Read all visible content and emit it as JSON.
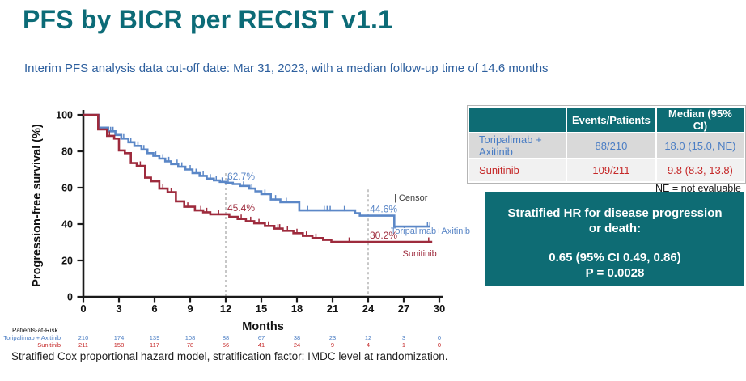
{
  "slide": {
    "title": "PFS by BICR per RECIST v1.1",
    "subtitle": "Interim PFS analysis data cut-off date: Mar 31, 2023, with a median follow-up time of 14.6 months",
    "footnote": "Stratified Cox proportional hazard model, stratification factor: IMDC level at randomization."
  },
  "colors": {
    "title_teal": "#0c6b77",
    "panel_teal": "#0e6c74",
    "subtitle_blue": "#2d5f9e",
    "table_blue": "#4a7dc4",
    "table_red": "#c52828",
    "curve_blue": "#5b87c7",
    "curve_red": "#9e2b3d"
  },
  "summary_table": {
    "headers": [
      "",
      "Events/Patients",
      "Median (95% CI)"
    ],
    "rows": [
      {
        "label": "Toripalimab + Axitinib",
        "events_patients": "88/210",
        "median": "18.0 (15.0, NE)"
      },
      {
        "label": "Sunitinib",
        "events_patients": "109/211",
        "median": "9.8 (8.3, 13.8)"
      }
    ],
    "footnote": "NE = not evaluable"
  },
  "hr_box": {
    "title": "Stratified HR for disease progression or death:",
    "value": "0.65 (95% CI 0.49, 0.86)",
    "p_value": "P = 0.0028"
  },
  "chart_data": {
    "type": "line",
    "subtype": "kaplan-meier-step",
    "title": "",
    "xlabel": "Months",
    "ylabel": "Progression-free survival (%)",
    "xlim": [
      0,
      30
    ],
    "ylim": [
      0,
      100
    ],
    "x_ticks": [
      0,
      3,
      6,
      9,
      12,
      15,
      18,
      21,
      24,
      27,
      30
    ],
    "y_ticks": [
      0,
      20,
      40,
      60,
      80,
      100
    ],
    "grid": false,
    "legend": {
      "censor_label": "| Censor"
    },
    "milestone_lines": [
      {
        "t": 12,
        "s_top": 68
      },
      {
        "t": 24,
        "s_top": 59
      }
    ],
    "series": [
      {
        "name": "Toripalimab+Axitinib",
        "color": "#5b87c7",
        "steps": [
          [
            0,
            100
          ],
          [
            1.3,
            93
          ],
          [
            2.1,
            91
          ],
          [
            2.7,
            89
          ],
          [
            3.2,
            87
          ],
          [
            3.8,
            85
          ],
          [
            4.3,
            83
          ],
          [
            4.9,
            81
          ],
          [
            5.4,
            79
          ],
          [
            5.9,
            77.5
          ],
          [
            6.4,
            76
          ],
          [
            6.9,
            74.5
          ],
          [
            7.4,
            73
          ],
          [
            8.0,
            71.5
          ],
          [
            8.6,
            70
          ],
          [
            9.2,
            68
          ],
          [
            9.8,
            66.5
          ],
          [
            10.4,
            65
          ],
          [
            11.0,
            64
          ],
          [
            11.5,
            63.2
          ],
          [
            12.0,
            62.7
          ],
          [
            12.6,
            62
          ],
          [
            13.2,
            61
          ],
          [
            14.0,
            59.5
          ],
          [
            14.5,
            58
          ],
          [
            15.0,
            56.5
          ],
          [
            15.8,
            53.5
          ],
          [
            16.6,
            52
          ],
          [
            18.2,
            47.5
          ],
          [
            22.9,
            46
          ],
          [
            23.3,
            44.6
          ],
          [
            26.2,
            38.6
          ],
          [
            29.2,
            38.6
          ]
        ],
        "censors": [
          [
            2.3,
            91
          ],
          [
            2.5,
            91
          ],
          [
            3.4,
            87
          ],
          [
            4.0,
            85
          ],
          [
            4.6,
            83
          ],
          [
            5.1,
            81
          ],
          [
            6.1,
            77.5
          ],
          [
            6.7,
            76
          ],
          [
            7.2,
            74.5
          ],
          [
            7.9,
            73
          ],
          [
            8.3,
            71.5
          ],
          [
            9.0,
            70
          ],
          [
            9.5,
            68
          ],
          [
            10.1,
            66.5
          ],
          [
            10.7,
            65
          ],
          [
            11.2,
            64
          ],
          [
            11.7,
            63.2
          ],
          [
            12.2,
            62.7
          ],
          [
            13.5,
            61
          ],
          [
            14.2,
            59.5
          ],
          [
            15.3,
            56.5
          ],
          [
            16.2,
            53.5
          ],
          [
            17.1,
            52
          ],
          [
            18.9,
            47.5
          ],
          [
            20.3,
            47.5
          ],
          [
            20.55,
            47.5
          ],
          [
            20.8,
            47.5
          ],
          [
            22.0,
            47.5
          ],
          [
            29.0,
            38.6
          ],
          [
            29.2,
            38.6
          ]
        ],
        "annotations": [
          {
            "t": 12,
            "s": 62.7,
            "label": "62.7%"
          },
          {
            "t": 24,
            "s": 44.6,
            "label": "44.6%"
          }
        ],
        "name_label": {
          "t": 25.9,
          "s": 34.7
        }
      },
      {
        "name": "Sunitinib",
        "color": "#9e2b3d",
        "steps": [
          [
            0,
            100
          ],
          [
            1.25,
            92
          ],
          [
            2.0,
            88.5
          ],
          [
            2.6,
            87
          ],
          [
            3.0,
            80.5
          ],
          [
            3.5,
            79
          ],
          [
            4.0,
            73.5
          ],
          [
            4.5,
            72
          ],
          [
            5.2,
            65.5
          ],
          [
            5.7,
            63.5
          ],
          [
            6.4,
            59.5
          ],
          [
            7.1,
            57.5
          ],
          [
            7.8,
            52.5
          ],
          [
            8.5,
            49.5
          ],
          [
            9.4,
            47.5
          ],
          [
            10.1,
            46.5
          ],
          [
            10.7,
            45.4
          ],
          [
            12.3,
            44
          ],
          [
            13.0,
            42.8
          ],
          [
            13.7,
            41.6
          ],
          [
            14.4,
            40.4
          ],
          [
            15.3,
            39
          ],
          [
            16.1,
            37.5
          ],
          [
            16.8,
            36.3
          ],
          [
            17.7,
            35
          ],
          [
            18.5,
            33.5
          ],
          [
            19.3,
            32.3
          ],
          [
            20.2,
            31.3
          ],
          [
            20.9,
            30.2
          ],
          [
            29.4,
            30.2
          ]
        ],
        "censors": [
          [
            2.2,
            88.5
          ],
          [
            4.8,
            72
          ],
          [
            6.7,
            59.5
          ],
          [
            7.4,
            57.5
          ],
          [
            8.8,
            49.5
          ],
          [
            9.9,
            47.5
          ],
          [
            10.4,
            46.5
          ],
          [
            11.4,
            45.4
          ],
          [
            13.3,
            42.8
          ],
          [
            14.1,
            41.6
          ],
          [
            14.8,
            40.4
          ],
          [
            15.6,
            39
          ],
          [
            16.4,
            37.5
          ],
          [
            16.55,
            37.5
          ],
          [
            17.2,
            36.3
          ],
          [
            18.0,
            35
          ],
          [
            18.8,
            33.5
          ],
          [
            19.6,
            32.3
          ],
          [
            22.4,
            30.2
          ],
          [
            29.1,
            30.2
          ]
        ],
        "annotations": [
          {
            "t": 12,
            "s": 45.4,
            "label": "45.4%"
          },
          {
            "t": 24,
            "s": 30.2,
            "label": "30.2%"
          }
        ],
        "name_label": {
          "t": 26.9,
          "s": 22.2
        }
      }
    ]
  },
  "risk_table": {
    "title": "Patients-at-Risk",
    "rows": [
      {
        "label": "Toripalimab + Axitinib",
        "color": "#4a7dc4",
        "values": [
          210,
          174,
          139,
          108,
          88,
          67,
          38,
          23,
          12,
          3,
          0
        ]
      },
      {
        "label": "Sunitinib",
        "color": "#c52828",
        "values": [
          211,
          158,
          117,
          78,
          56,
          41,
          24,
          9,
          4,
          1,
          0
        ]
      }
    ]
  }
}
